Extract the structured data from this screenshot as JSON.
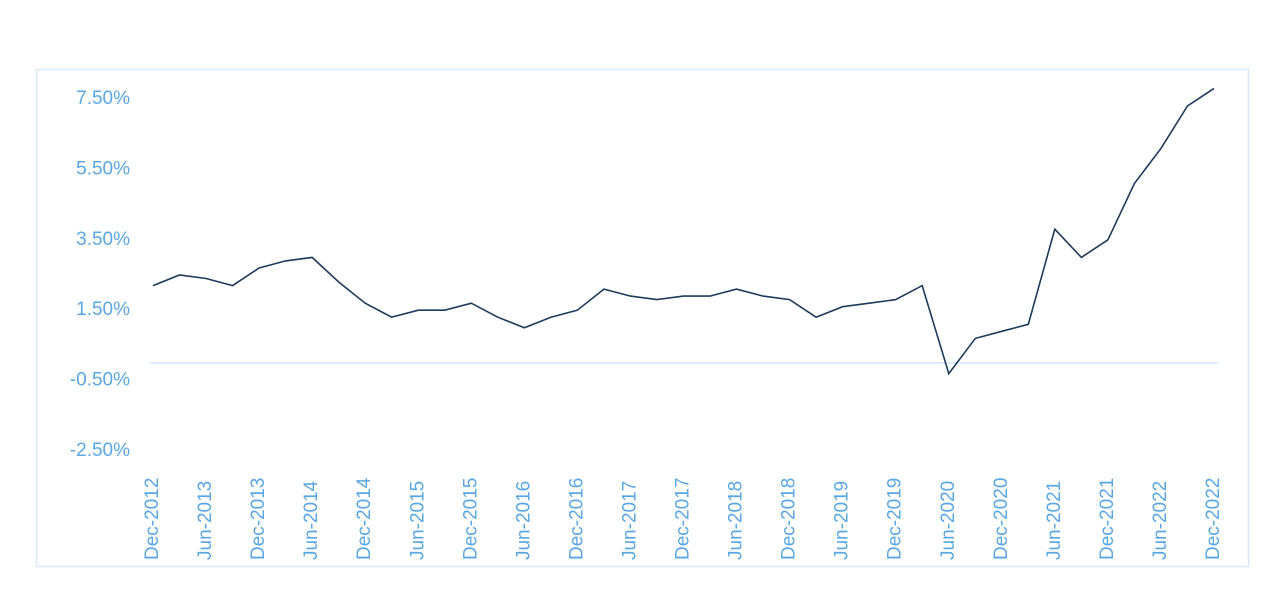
{
  "chart_data": {
    "type": "line",
    "categories": [
      "Dec-2012",
      null,
      "Jun-2013",
      null,
      "Dec-2013",
      null,
      "Jun-2014",
      null,
      "Dec-2014",
      null,
      "Jun-2015",
      null,
      "Dec-2015",
      null,
      "Jun-2016",
      null,
      "Dec-2016",
      null,
      "Jun-2017",
      null,
      "Dec-2017",
      null,
      "Jun-2018",
      null,
      "Dec-2018",
      null,
      "Jun-2019",
      null,
      "Dec-2019",
      null,
      "Jun-2020",
      null,
      "Dec-2020",
      null,
      "Jun-2021",
      null,
      "Dec-2021",
      null,
      "Jun-2022",
      null,
      "Dec-2022"
    ],
    "values": [
      2.2,
      2.5,
      2.4,
      2.2,
      2.7,
      2.9,
      3.0,
      2.3,
      1.7,
      1.3,
      1.5,
      1.5,
      1.7,
      1.3,
      1.0,
      1.3,
      1.5,
      2.1,
      1.9,
      1.8,
      1.9,
      1.9,
      2.1,
      1.9,
      1.8,
      1.3,
      1.6,
      1.7,
      1.8,
      2.2,
      -0.3,
      0.7,
      0.9,
      1.1,
      3.8,
      3.0,
      3.5,
      5.1,
      6.1,
      7.3,
      7.8
    ],
    "color": "#1f3b5a",
    "ylim": [
      -2.5,
      7.5
    ],
    "yticks": [
      {
        "value": -2.5,
        "label": "-2.50%"
      },
      {
        "value": -0.5,
        "label": "-0.50%"
      },
      {
        "value": 1.5,
        "label": "1.50%"
      },
      {
        "value": 3.5,
        "label": "3.50%"
      },
      {
        "value": 5.5,
        "label": "5.50%"
      },
      {
        "value": 7.5,
        "label": "7.50%"
      }
    ]
  }
}
